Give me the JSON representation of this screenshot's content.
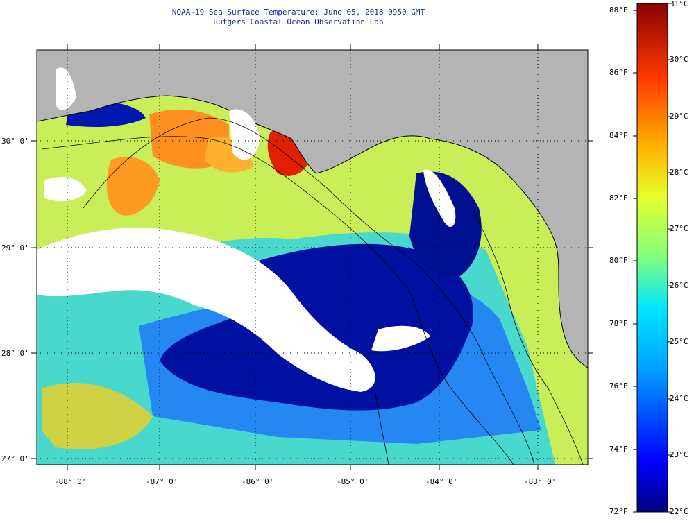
{
  "title": {
    "line1": "NOAA-19 Sea Surface Temperature:  June 05, 2018 0950 GMT",
    "line2": "Rutgers Coastal Ocean Observation Lab"
  },
  "map": {
    "latitude_labels": [
      "30° 0'",
      "29° 0'",
      "28° 0'",
      "27° 0'"
    ],
    "longitude_labels": [
      "-88° 0'",
      "-87° 0'",
      "-86° 0'",
      "-85° 0'",
      "-84° 0'",
      "-83° 0'"
    ],
    "land_color": "#b4b4b4",
    "cloud_color": "#ffffff",
    "graticule_style": "dotted"
  },
  "colorbar": {
    "fahrenheit_labels": [
      "88°F",
      "86°F",
      "84°F",
      "82°F",
      "80°F",
      "78°F",
      "76°F",
      "74°F",
      "72°F"
    ],
    "celsius_labels": [
      "31°C",
      "30°C",
      "29°C",
      "28°C",
      "27°C",
      "26°C",
      "25°C",
      "24°C",
      "23°C",
      "22°C"
    ],
    "range_celsius": [
      22,
      31
    ],
    "colors": [
      "#00007f",
      "#0000ff",
      "#00a0ff",
      "#00e5ff",
      "#7fff7f",
      "#e6ff2a",
      "#ffb000",
      "#ff3c00",
      "#8c0000"
    ]
  }
}
